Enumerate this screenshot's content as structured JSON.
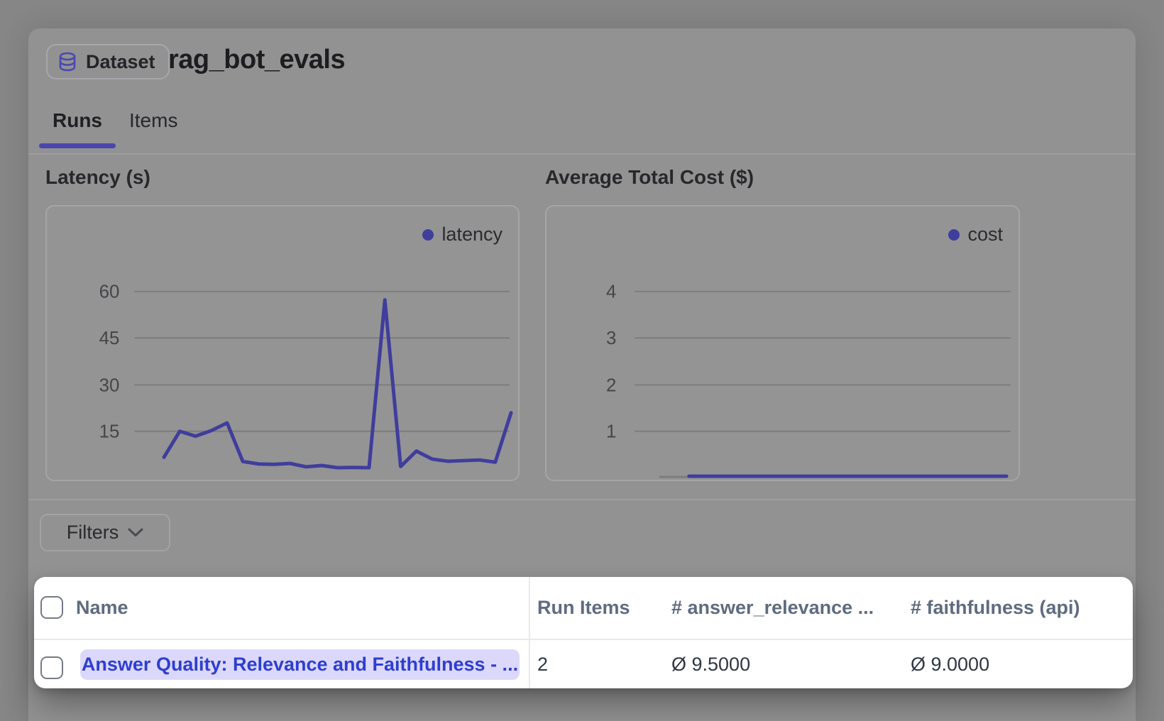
{
  "header": {
    "badge_label": "Dataset",
    "title": "rag_bot_evals"
  },
  "tabs": [
    {
      "label": "Runs",
      "active": true
    },
    {
      "label": "Items",
      "active": false
    }
  ],
  "filters": {
    "label": "Filters"
  },
  "chart_data": [
    {
      "type": "line",
      "title": "Latency (s)",
      "xlabel": "",
      "ylabel": "seconds",
      "legend": [
        "latency"
      ],
      "legend_position": "top-right",
      "grid": true,
      "yticks": [
        60,
        45,
        30,
        15
      ],
      "ylim": [
        0,
        66
      ],
      "series": [
        {
          "name": "latency",
          "values": [
            6.6,
            15,
            13.4,
            15.2,
            17.7,
            5.2,
            4.4,
            4.3,
            4.6,
            3.5,
            3.9,
            3.2,
            3.3,
            3.2,
            57.5,
            3.6,
            8.6,
            6,
            5.3,
            5.5,
            5.7,
            5,
            21
          ]
        }
      ],
      "color": "#3f3e9d"
    },
    {
      "type": "line",
      "title": "Average Total Cost ($)",
      "xlabel": "",
      "ylabel": "dollars",
      "legend": [
        "cost"
      ],
      "legend_position": "top-right",
      "grid": true,
      "yticks": [
        4,
        3,
        2,
        1
      ],
      "ylim": [
        0,
        4.4
      ],
      "series": [
        {
          "name": "cost",
          "values": [
            0.03,
            0.03,
            0.03,
            0.03,
            0.03,
            0.03,
            0.03,
            0.03,
            0.03,
            0.03,
            0.03,
            0.03,
            0.03,
            0.03,
            0.03,
            0.03,
            0.03,
            0.03,
            0.03,
            0.03,
            0.03,
            0.03,
            0.03
          ]
        }
      ],
      "color": "#3f3e9d"
    }
  ],
  "table": {
    "headers": [
      "Name",
      "Run Items",
      "# answer_relevance ...",
      "# faithfulness (api)"
    ],
    "rows": [
      {
        "name": "Answer Quality: Relevance and Faithfulness - ...",
        "run_items": "2",
        "answer_relevance": "Ø 9.5000",
        "faithfulness": "Ø 9.0000"
      }
    ]
  },
  "colors": {
    "accent_indigo": "#3f3e9d",
    "tab_underline": "#4a47ac",
    "pill_bg": "#dcd8fb",
    "link_text": "#2e3ed0",
    "table_header_text": "#5f6b80"
  }
}
